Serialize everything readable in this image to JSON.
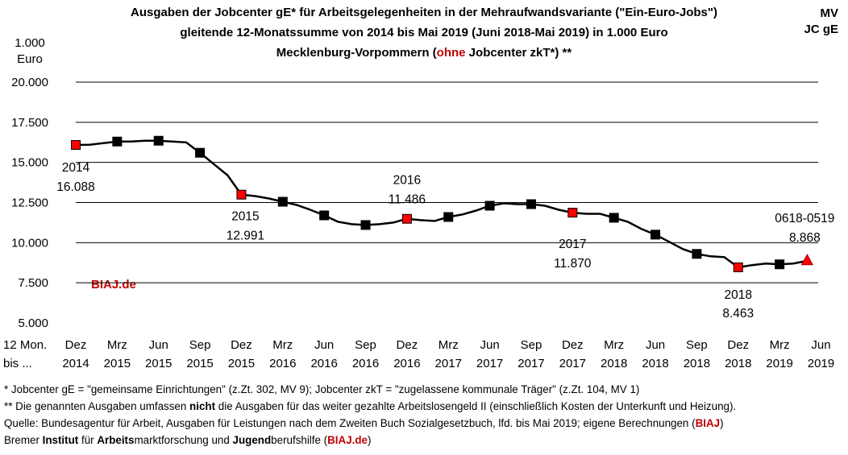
{
  "header": {
    "title_line1": "Ausgaben der Jobcenter gE* für Arbeitsgelegenheiten in der Mehraufwandsvariante (\"Ein-Euro-Jobs\")",
    "title_line2": "gleitende 12-Monatssumme von 2014 bis Mai 2019 (Juni 2018-Mai 2019) in 1.000 Euro",
    "title_line3_pre": "Mecklenburg-Vorpommern (",
    "title_line3_red": "ohne",
    "title_line3_post": " Jobcenter zkT*) **",
    "corner_line1": "MV",
    "corner_line2": "JC gE",
    "unit_line1": "1.000",
    "unit_line2": "Euro",
    "xaxis_caption_line1": "12 Mon.",
    "xaxis_caption_line2": "bis ...",
    "watermark": "BIAJ.de"
  },
  "footnotes": {
    "line1": "*    Jobcenter gE = \"gemeinsame Einrichtungen\" (z.Zt. 302, MV 9); Jobcenter zkT = \"zugelassene kommunale Träger\" (z.Zt. 104, MV 1)",
    "line2_pre": "** Die genannten Ausgaben umfassen ",
    "line2_bold": "nicht",
    "line2_post": " die Ausgaben für das weiter gezahlte Arbeitslosengeld II (einschließlich Kosten der Unterkunft und Heizung).",
    "line3_pre": "Quelle: Bundesagentur für Arbeit, Ausgaben für Leistungen nach dem Zweiten Buch Sozialgesetzbuch, lfd. bis Mai 2019; eigene Berechnungen (",
    "line3_red": "BIAJ",
    "line3_post": ")",
    "line4_a": "Bremer ",
    "line4_b": "Institut",
    "line4_c": " für ",
    "line4_d": "Arbeits",
    "line4_e": "marktforschung und ",
    "line4_f": "Jugend",
    "line4_g": "berufshilfe (",
    "line4_h": "BIAJ.de",
    "line4_i": ")"
  },
  "chart_data": {
    "type": "line",
    "title": "Ausgaben der Jobcenter gE* für Arbeitsgelegenheiten in der Mehraufwandsvariante (\"Ein-Euro-Jobs\")",
    "ylabel": "1.000 Euro",
    "ylim": [
      5000,
      20000
    ],
    "ytick_values": [
      5000,
      7500,
      10000,
      12500,
      15000,
      17500,
      20000
    ],
    "ytick_labels": [
      "5.000",
      "7.500",
      "10.000",
      "12.500",
      "15.000",
      "17.500",
      "20.000"
    ],
    "grid": true,
    "xtick_labels": [
      [
        "Dez",
        "2014"
      ],
      [
        "Mrz",
        "2015"
      ],
      [
        "Jun",
        "2015"
      ],
      [
        "Sep",
        "2015"
      ],
      [
        "Dez",
        "2015"
      ],
      [
        "Mrz",
        "2016"
      ],
      [
        "Jun",
        "2016"
      ],
      [
        "Sep",
        "2016"
      ],
      [
        "Dez",
        "2016"
      ],
      [
        "Mrz",
        "2017"
      ],
      [
        "Jun",
        "2017"
      ],
      [
        "Sep",
        "2017"
      ],
      [
        "Dez",
        "2017"
      ],
      [
        "Mrz",
        "2018"
      ],
      [
        "Jun",
        "2018"
      ],
      [
        "Sep",
        "2018"
      ],
      [
        "Dez",
        "2018"
      ],
      [
        "Mrz",
        "2019"
      ],
      [
        "Jun",
        "2019"
      ]
    ],
    "colors": {
      "line": "#000000",
      "marker_quarter": "#000000",
      "marker_december": "#ff0000",
      "marker_last": "#ff0000",
      "grid": "#000000"
    },
    "series": [
      {
        "x": [
          "Dez 2014",
          "Jan 2015",
          "Feb 2015",
          "Mrz 2015",
          "Apr 2015",
          "Mai 2015",
          "Jun 2015",
          "Jul 2015",
          "Aug 2015",
          "Sep 2015",
          "Okt 2015",
          "Nov 2015",
          "Dez 2015",
          "Jan 2016",
          "Feb 2016",
          "Mrz 2016",
          "Apr 2016",
          "Mai 2016",
          "Jun 2016",
          "Jul 2016",
          "Aug 2016",
          "Sep 2016",
          "Okt 2016",
          "Nov 2016",
          "Dez 2016",
          "Jan 2017",
          "Feb 2017",
          "Mrz 2017",
          "Apr 2017",
          "Mai 2017",
          "Jun 2017",
          "Jul 2017",
          "Aug 2017",
          "Sep 2017",
          "Okt 2017",
          "Nov 2017",
          "Dez 2017",
          "Jan 2018",
          "Feb 2018",
          "Mrz 2018",
          "Apr 2018",
          "Mai 2018",
          "Jun 2018",
          "Jul 2018",
          "Aug 2018",
          "Sep 2018",
          "Okt 2018",
          "Nov 2018",
          "Dez 2018",
          "Jan 2019",
          "Feb 2019",
          "Mrz 2019",
          "Apr 2019",
          "Mai 2019"
        ],
        "values": [
          16088,
          16100,
          16200,
          16300,
          16300,
          16350,
          16350,
          16300,
          16250,
          15600,
          14900,
          14200,
          12991,
          12900,
          12750,
          12550,
          12350,
          12050,
          11700,
          11300,
          11150,
          11100,
          11150,
          11250,
          11486,
          11400,
          11350,
          11600,
          11750,
          12000,
          12300,
          12450,
          12400,
          12400,
          12300,
          12050,
          11870,
          11800,
          11800,
          11550,
          11300,
          10850,
          10500,
          10050,
          9600,
          9300,
          9150,
          9100,
          8463,
          8600,
          8700,
          8650,
          8700,
          8868
        ]
      }
    ],
    "annotations": [
      {
        "x": "Dez 2014",
        "line1": "2014",
        "line2": "16.088"
      },
      {
        "x": "Dez 2015",
        "line1": "2015",
        "line2": "12.991"
      },
      {
        "x": "Dez 2016",
        "line1": "2016",
        "line2": "11.486"
      },
      {
        "x": "Dez 2017",
        "line1": "2017",
        "line2": "11.870"
      },
      {
        "x": "Dez 2018",
        "line1": "2018",
        "line2": "8.463"
      },
      {
        "x": "Mai 2019",
        "line1": "0618-0519",
        "line2": "8.868"
      }
    ]
  }
}
